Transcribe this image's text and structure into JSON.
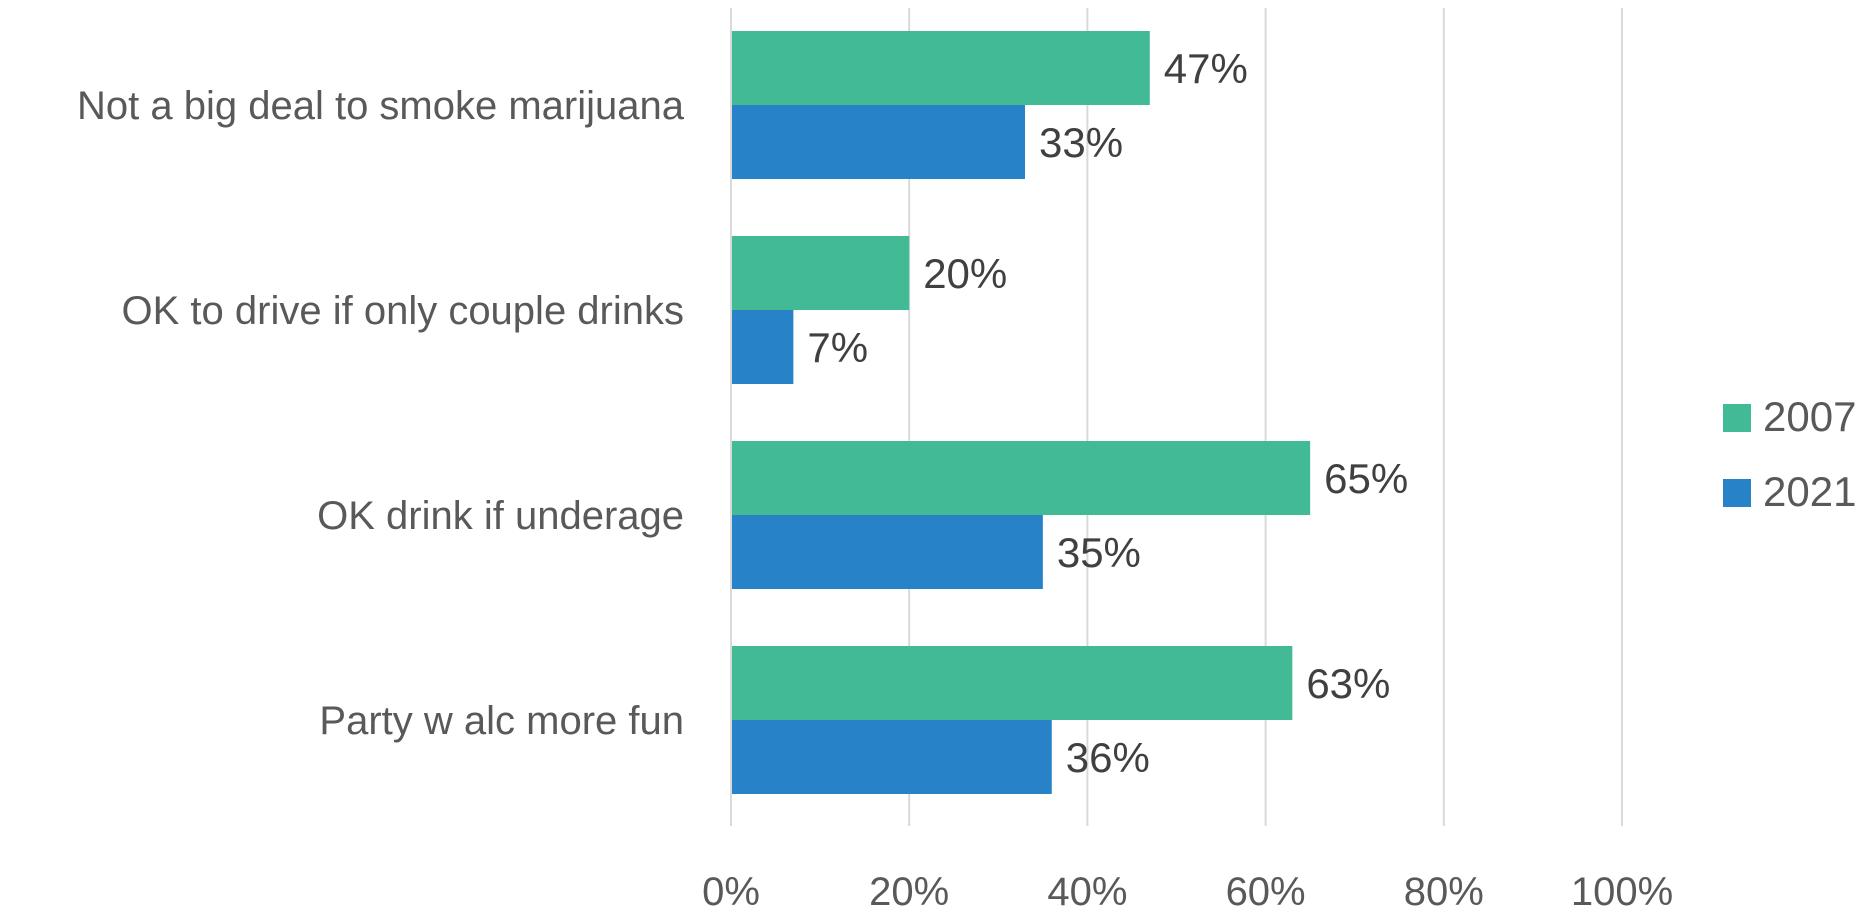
{
  "chart_data": {
    "type": "bar",
    "orientation": "horizontal",
    "categories": [
      "Not a big deal to smoke marijuana",
      "OK to drive if only couple drinks",
      "OK drink if underage",
      "Party w alc more fun"
    ],
    "series": [
      {
        "name": "2007",
        "color": "#43BA96",
        "values": [
          47,
          20,
          65,
          63
        ]
      },
      {
        "name": "2021",
        "color": "#2882C8",
        "values": [
          33,
          7,
          35,
          36
        ]
      }
    ],
    "value_format": "percent",
    "xlim": [
      0,
      100
    ],
    "xticks": [
      0,
      20,
      40,
      60,
      80,
      100
    ],
    "xtick_labels": [
      "0%",
      "20%",
      "40%",
      "60%",
      "80%",
      "100%"
    ],
    "grid": "vertical",
    "legend_position": "right",
    "title": "",
    "xlabel": "",
    "ylabel": ""
  }
}
